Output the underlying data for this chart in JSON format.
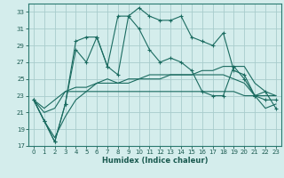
{
  "xlabel": "Humidex (Indice chaleur)",
  "bg_color": "#d4edec",
  "grid_color": "#a8cccc",
  "line_color": "#1a6b60",
  "xlim": [
    -0.5,
    23.5
  ],
  "ylim": [
    17,
    34
  ],
  "yticks": [
    17,
    19,
    21,
    23,
    25,
    27,
    29,
    31,
    33
  ],
  "xticks": [
    0,
    1,
    2,
    3,
    4,
    5,
    6,
    7,
    8,
    9,
    10,
    11,
    12,
    13,
    14,
    15,
    16,
    17,
    18,
    19,
    20,
    21,
    22,
    23
  ],
  "series1": [
    22.5,
    20.0,
    17.5,
    22.0,
    29.5,
    30.0,
    30.0,
    26.5,
    32.5,
    32.5,
    33.5,
    32.5,
    32.0,
    32.0,
    32.5,
    30.0,
    29.5,
    29.0,
    30.5,
    26.0,
    25.5,
    23.0,
    22.5,
    22.5
  ],
  "series2": [
    22.5,
    20.0,
    17.5,
    22.0,
    28.5,
    27.0,
    30.0,
    26.5,
    25.5,
    32.5,
    31.0,
    28.5,
    27.0,
    27.5,
    27.0,
    26.0,
    23.5,
    23.0,
    23.0,
    26.5,
    25.0,
    23.0,
    23.5,
    21.5
  ],
  "series3": [
    22.5,
    21.5,
    22.5,
    23.5,
    24.0,
    24.0,
    24.5,
    24.5,
    24.5,
    24.5,
    25.0,
    25.0,
    25.0,
    25.5,
    25.5,
    25.5,
    26.0,
    26.0,
    26.5,
    26.5,
    26.5,
    24.5,
    23.5,
    23.0
  ],
  "series4": [
    22.5,
    21.0,
    21.5,
    23.5,
    23.5,
    23.5,
    23.5,
    23.5,
    23.5,
    23.5,
    23.5,
    23.5,
    23.5,
    23.5,
    23.5,
    23.5,
    23.5,
    23.5,
    23.5,
    23.5,
    23.0,
    23.0,
    23.0,
    23.0
  ],
  "series5": [
    22.5,
    20.0,
    18.0,
    20.5,
    22.5,
    23.5,
    24.5,
    25.0,
    24.5,
    25.0,
    25.0,
    25.5,
    25.5,
    25.5,
    25.5,
    25.5,
    25.5,
    25.5,
    25.5,
    25.0,
    24.5,
    23.0,
    21.5,
    22.0
  ]
}
